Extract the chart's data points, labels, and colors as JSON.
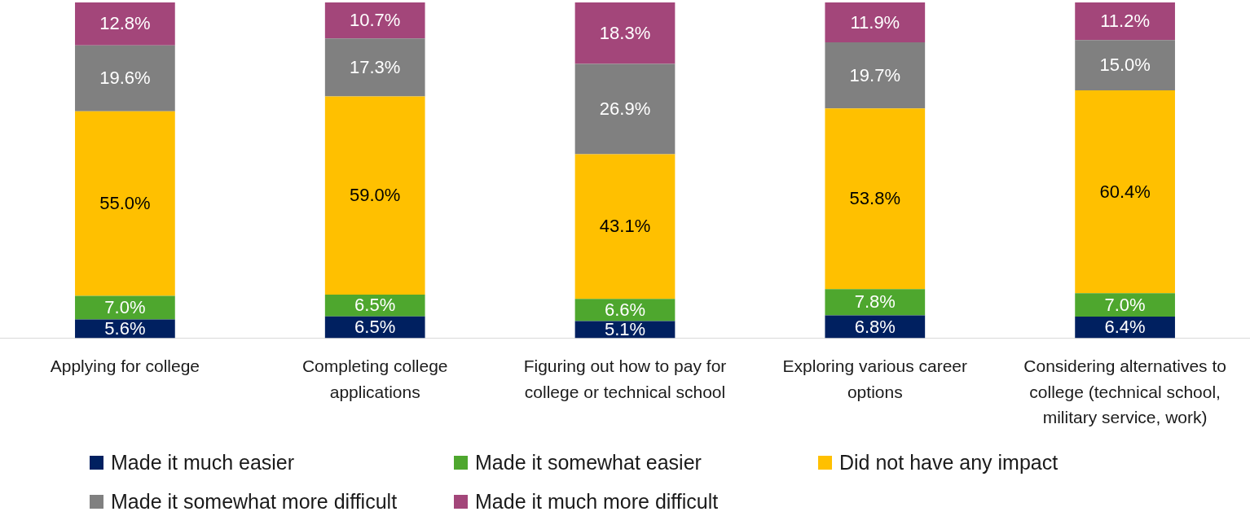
{
  "chart_data": {
    "type": "bar",
    "stacked": true,
    "categories": [
      "Applying for college",
      "Completing college applications",
      "Figuring out how to pay for college or technical school",
      "Exploring various career options",
      "Considering alternatives to college (technical school, military service, work)"
    ],
    "ylim": [
      0,
      100
    ],
    "tick_labels": "x",
    "legend": "bottom",
    "series": [
      {
        "name": "Made it much easier",
        "color": "#002060",
        "values": [
          5.6,
          6.5,
          5.1,
          6.8,
          6.4
        ],
        "value_labels": [
          "5.6%",
          "6.5%",
          "5.1%",
          "6.8%",
          "6.4%"
        ]
      },
      {
        "name": "Made it somewhat easier",
        "color": "#4ea72e",
        "values": [
          7.0,
          6.5,
          6.6,
          7.8,
          7.0
        ],
        "value_labels": [
          "7.0%",
          "6.5%",
          "6.6%",
          "7.8%",
          "7.0%"
        ]
      },
      {
        "name": "Did not have any impact",
        "color": "#ffc000",
        "values": [
          55.0,
          59.0,
          43.1,
          53.8,
          60.4
        ],
        "value_labels": [
          "55.0%",
          "59.0%",
          "43.1%",
          "53.8%",
          "60.4%"
        ]
      },
      {
        "name": "Made it somewhat more difficult",
        "color": "#808080",
        "values": [
          19.6,
          17.3,
          26.9,
          19.7,
          15.0
        ],
        "value_labels": [
          "19.6%",
          "17.3%",
          "26.9%",
          "19.7%",
          "15.0%"
        ]
      },
      {
        "name": "Made it much more difficult",
        "color": "#a3467a",
        "values": [
          12.8,
          10.7,
          18.3,
          11.9,
          11.2
        ],
        "value_labels": [
          "12.8%",
          "10.7%",
          "18.3%",
          "11.9%",
          "11.2%"
        ]
      }
    ]
  }
}
